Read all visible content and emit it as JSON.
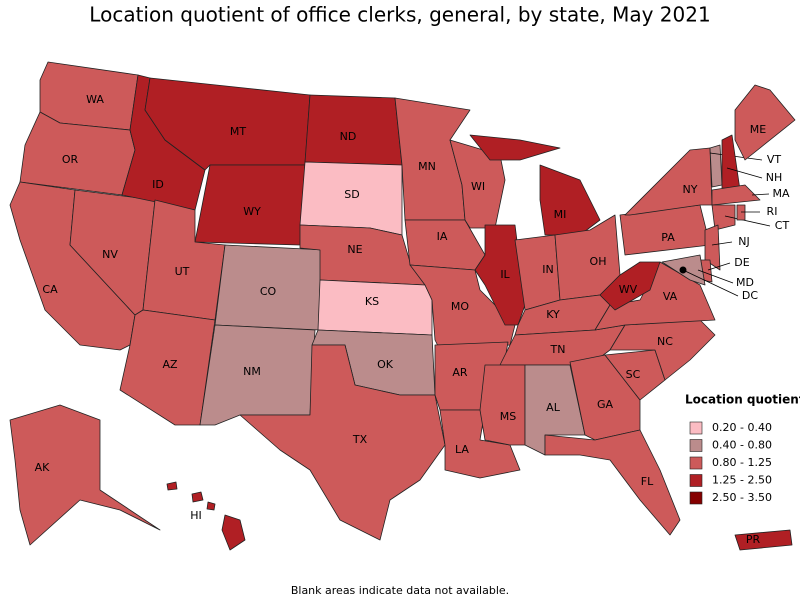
{
  "title": "Location quotient of office clerks, general, by state, May 2021",
  "note": "Blank areas indicate data not available.",
  "legend": {
    "title": "Location quotient",
    "items": [
      {
        "label": "0.20 - 0.40",
        "color": "#fbbcc3"
      },
      {
        "label": "0.40 - 0.80",
        "color": "#bb8c8c"
      },
      {
        "label": "0.80 - 1.25",
        "color": "#cd5a5a"
      },
      {
        "label": "1.25 - 2.50",
        "color": "#b01f24"
      },
      {
        "label": "2.50 - 3.50",
        "color": "#850000"
      }
    ]
  },
  "states": [
    {
      "abbr": "WA",
      "range": "0.80 - 1.25"
    },
    {
      "abbr": "OR",
      "range": "0.80 - 1.25"
    },
    {
      "abbr": "CA",
      "range": "0.80 - 1.25"
    },
    {
      "abbr": "NV",
      "range": "0.80 - 1.25"
    },
    {
      "abbr": "ID",
      "range": "1.25 - 2.50"
    },
    {
      "abbr": "MT",
      "range": "1.25 - 2.50"
    },
    {
      "abbr": "WY",
      "range": "1.25 - 2.50"
    },
    {
      "abbr": "UT",
      "range": "0.80 - 1.25"
    },
    {
      "abbr": "AZ",
      "range": "0.80 - 1.25"
    },
    {
      "abbr": "CO",
      "range": "0.40 - 0.80"
    },
    {
      "abbr": "NM",
      "range": "0.40 - 0.80"
    },
    {
      "abbr": "ND",
      "range": "1.25 - 2.50"
    },
    {
      "abbr": "SD",
      "range": "0.20 - 0.40"
    },
    {
      "abbr": "NE",
      "range": "0.80 - 1.25"
    },
    {
      "abbr": "KS",
      "range": "0.20 - 0.40"
    },
    {
      "abbr": "OK",
      "range": "0.40 - 0.80"
    },
    {
      "abbr": "TX",
      "range": "0.80 - 1.25"
    },
    {
      "abbr": "MN",
      "range": "0.80 - 1.25"
    },
    {
      "abbr": "IA",
      "range": "0.80 - 1.25"
    },
    {
      "abbr": "MO",
      "range": "0.80 - 1.25"
    },
    {
      "abbr": "AR",
      "range": "0.80 - 1.25"
    },
    {
      "abbr": "LA",
      "range": "0.80 - 1.25"
    },
    {
      "abbr": "WI",
      "range": "0.80 - 1.25"
    },
    {
      "abbr": "IL",
      "range": "1.25 - 2.50"
    },
    {
      "abbr": "MI",
      "range": "1.25 - 2.50"
    },
    {
      "abbr": "IN",
      "range": "0.80 - 1.25"
    },
    {
      "abbr": "OH",
      "range": "0.80 - 1.25"
    },
    {
      "abbr": "KY",
      "range": "0.80 - 1.25"
    },
    {
      "abbr": "TN",
      "range": "0.80 - 1.25"
    },
    {
      "abbr": "MS",
      "range": "0.80 - 1.25"
    },
    {
      "abbr": "AL",
      "range": "0.40 - 0.80"
    },
    {
      "abbr": "GA",
      "range": "0.80 - 1.25"
    },
    {
      "abbr": "FL",
      "range": "0.80 - 1.25"
    },
    {
      "abbr": "SC",
      "range": "0.80 - 1.25"
    },
    {
      "abbr": "NC",
      "range": "0.80 - 1.25"
    },
    {
      "abbr": "VA",
      "range": "0.80 - 1.25"
    },
    {
      "abbr": "WV",
      "range": "1.25 - 2.50"
    },
    {
      "abbr": "PA",
      "range": "0.80 - 1.25"
    },
    {
      "abbr": "NY",
      "range": "0.80 - 1.25"
    },
    {
      "abbr": "VT",
      "range": "0.40 - 0.80"
    },
    {
      "abbr": "NH",
      "range": "1.25 - 2.50"
    },
    {
      "abbr": "ME",
      "range": "0.80 - 1.25"
    },
    {
      "abbr": "MA",
      "range": "0.80 - 1.25"
    },
    {
      "abbr": "CT",
      "range": "0.80 - 1.25"
    },
    {
      "abbr": "RI",
      "range": "0.80 - 1.25"
    },
    {
      "abbr": "NJ",
      "range": "0.80 - 1.25"
    },
    {
      "abbr": "DE",
      "range": "0.80 - 1.25"
    },
    {
      "abbr": "MD",
      "range": "0.40 - 0.80"
    },
    {
      "abbr": "DC",
      "range": "2.50 - 3.50"
    },
    {
      "abbr": "AK",
      "range": "0.80 - 1.25"
    },
    {
      "abbr": "HI",
      "range": "1.25 - 2.50"
    },
    {
      "abbr": "PR",
      "range": "1.25 - 2.50"
    }
  ]
}
